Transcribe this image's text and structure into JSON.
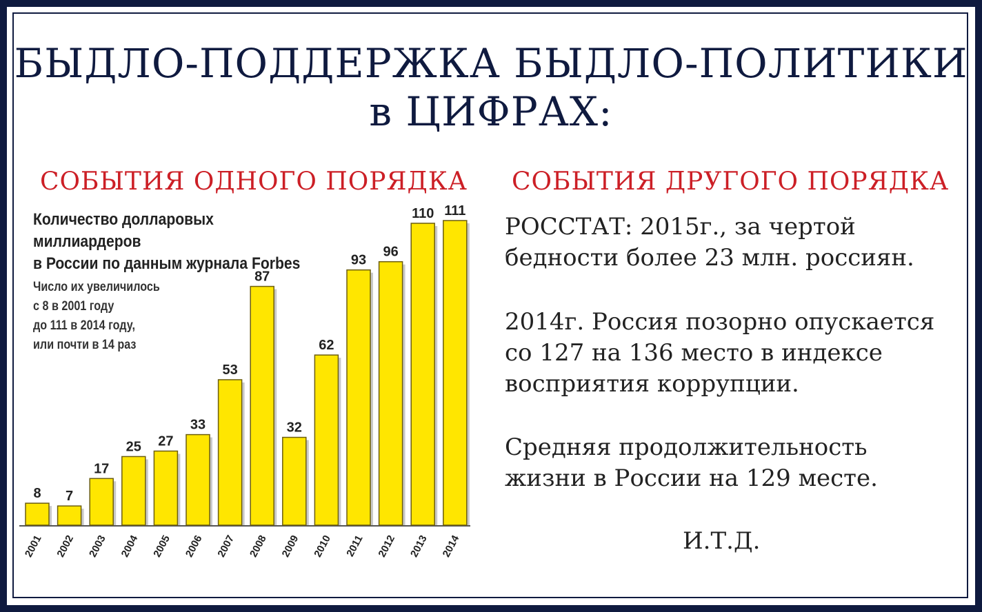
{
  "header": {
    "title_line1": "БЫДЛО-ПОДДЕРЖКА  БЫДЛО-ПОЛИТИКИ",
    "title_line2": "в  ЦИФРАХ:"
  },
  "left": {
    "heading": "СОБЫТИЯ ОДНОГО ПОРЯДКА"
  },
  "right": {
    "heading": "СОБЫТИЯ ДРУГОГО ПОРЯДКА",
    "p1_line1": "РОССТАТ: 2015г., за чертой",
    "p1_line2": "бедности более 23 млн. россиян.",
    "p2_line1": "2014г. Россия позорно опускается",
    "p2_line2": "со 127 на 136 место в индексе",
    "p2_line3": "восприятия коррупции.",
    "p3_line1": "Средняя продолжительность",
    "p3_line2": "жизни в России на 129 месте.",
    "itd": "И.Т.Д."
  },
  "colors": {
    "frame": "#0f1a3f",
    "heading_red": "#cc1f26",
    "bar_fill": "#ffe600",
    "bar_edge": "#6b5d10"
  },
  "chart_data": {
    "type": "bar",
    "title_line1": "Количество долларовых миллиардеров",
    "title_line2": "в России по данным журнала Forbes",
    "note_line1": "Число их увеличилось",
    "note_line2": "с 8 в 2001 году",
    "note_line3": "до 111 в 2014 году,",
    "note_line4": "или почти в 14 раз",
    "categories": [
      "2001",
      "2002",
      "2003",
      "2004",
      "2005",
      "2006",
      "2007",
      "2008",
      "2009",
      "2010",
      "2011",
      "2012",
      "2013",
      "2014"
    ],
    "values": [
      8,
      7,
      17,
      25,
      27,
      33,
      53,
      87,
      32,
      62,
      93,
      96,
      110,
      111
    ],
    "ylim": [
      0,
      111
    ],
    "grid": false,
    "legend": "none"
  }
}
